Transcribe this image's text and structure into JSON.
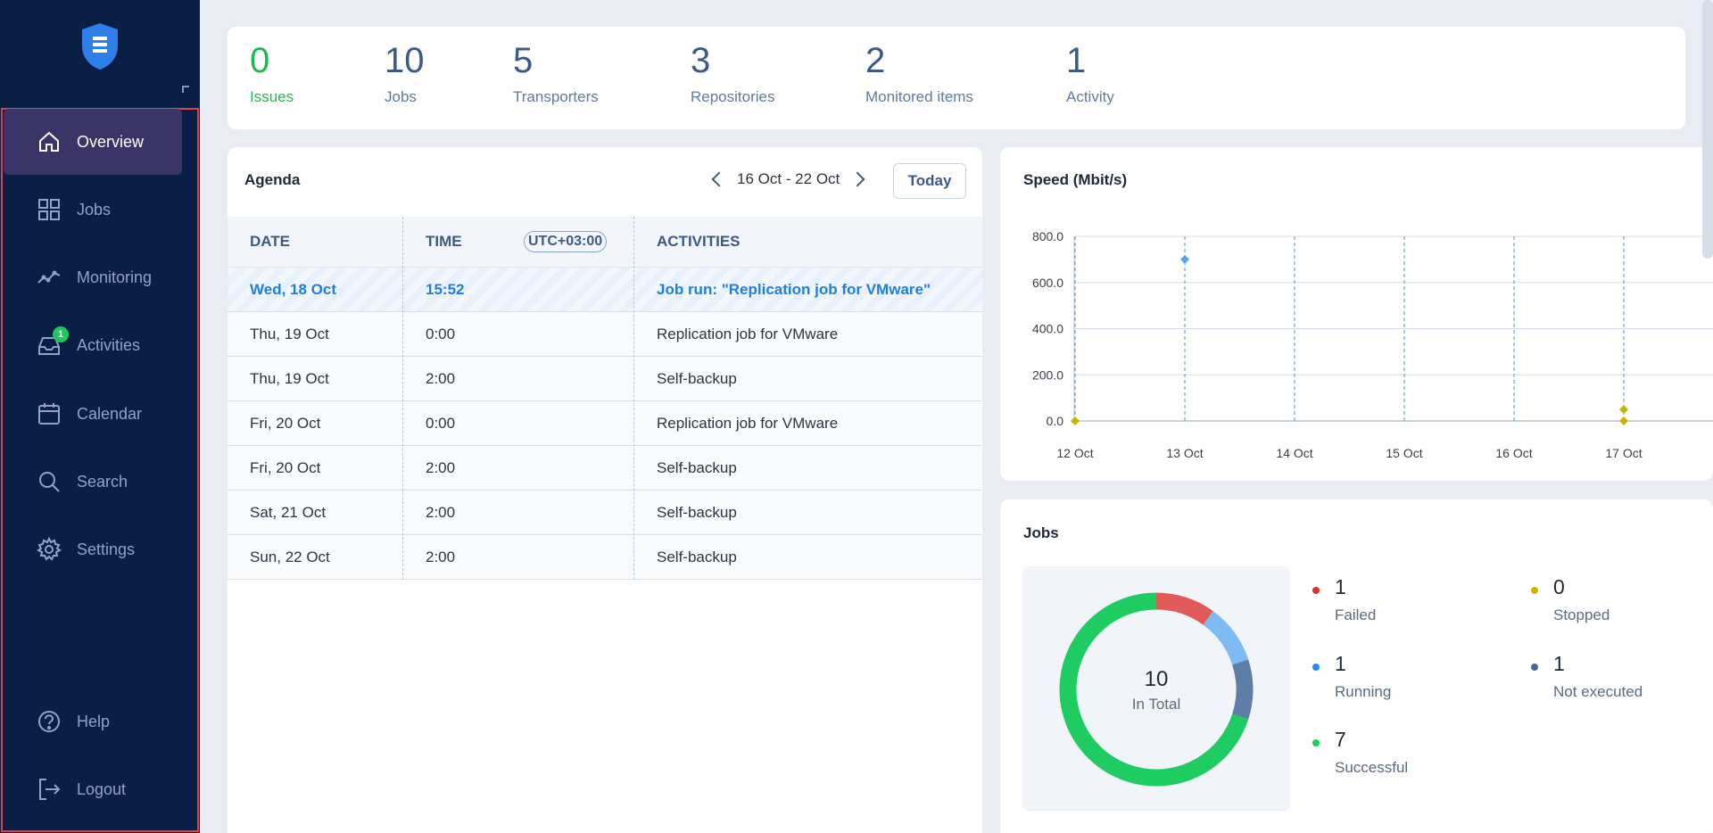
{
  "colors": {
    "sidebar_bg": "#0b1e44",
    "active_nav_bg": "#3b3466",
    "accent_green": "#22b853",
    "accent_blue": "#1e7fde",
    "failed": "#e05a5a",
    "running": "#7dbbf2",
    "not_executed": "#5f7ea6",
    "successful": "#1fcc62",
    "stopped": "#c8b400"
  },
  "sidebar": {
    "logo_icon": "shield-logo-icon",
    "items": [
      {
        "label": "Overview",
        "icon": "home-icon",
        "active": true
      },
      {
        "label": "Jobs",
        "icon": "grid-icon"
      },
      {
        "label": "Monitoring",
        "icon": "graph-icon"
      },
      {
        "label": "Activities",
        "icon": "inbox-icon",
        "badge": "1"
      },
      {
        "label": "Calendar",
        "icon": "calendar-icon"
      },
      {
        "label": "Search",
        "icon": "search-icon"
      },
      {
        "label": "Settings",
        "icon": "gear-icon"
      },
      {
        "label": "Help",
        "icon": "help-icon"
      },
      {
        "label": "Logout",
        "icon": "logout-icon"
      }
    ]
  },
  "stats": [
    {
      "value": "0",
      "label": "Issues"
    },
    {
      "value": "10",
      "label": "Jobs"
    },
    {
      "value": "5",
      "label": "Transporters"
    },
    {
      "value": "3",
      "label": "Repositories"
    },
    {
      "value": "2",
      "label": "Monitored items"
    },
    {
      "value": "1",
      "label": "Activity"
    }
  ],
  "agenda": {
    "title": "Agenda",
    "range": "16 Oct - 22 Oct",
    "today_label": "Today",
    "headers": {
      "date": "DATE",
      "time": "TIME",
      "timezone": "UTC+03:00",
      "activities": "ACTIVITIES"
    },
    "rows": [
      {
        "date": "Wed, 18 Oct",
        "time": "15:52",
        "activity": "Job run: \"Replication job for VMware\"",
        "highlight": true
      },
      {
        "date": "Thu, 19 Oct",
        "time": "0:00",
        "activity": "Replication job for VMware"
      },
      {
        "date": "Thu, 19 Oct",
        "time": "2:00",
        "activity": "Self-backup"
      },
      {
        "date": "Fri, 20 Oct",
        "time": "0:00",
        "activity": "Replication job for VMware"
      },
      {
        "date": "Fri, 20 Oct",
        "time": "2:00",
        "activity": "Self-backup"
      },
      {
        "date": "Sat, 21 Oct",
        "time": "2:00",
        "activity": "Self-backup"
      },
      {
        "date": "Sun, 22 Oct",
        "time": "2:00",
        "activity": "Self-backup"
      }
    ]
  },
  "speed": {
    "title": "Speed (Mbit/s)"
  },
  "jobs": {
    "title": "Jobs",
    "total": "10",
    "total_label": "In Total",
    "legend": [
      {
        "value": "1",
        "label": "Failed",
        "color": "#d9342b"
      },
      {
        "value": "0",
        "label": "Stopped",
        "color": "#c8b400"
      },
      {
        "value": "1",
        "label": "Running",
        "color": "#1e8ef0"
      },
      {
        "value": "1",
        "label": "Not executed",
        "color": "#4a6a96"
      },
      {
        "value": "7",
        "label": "Successful",
        "color": "#1fcc62"
      }
    ]
  },
  "chart_data": [
    {
      "type": "scatter",
      "title": "Speed (Mbit/s)",
      "x": [
        "12 Oct",
        "13 Oct",
        "14 Oct",
        "15 Oct",
        "16 Oct",
        "17 Oct"
      ],
      "yticks": [
        "800.0",
        "600.0",
        "400.0",
        "200.0",
        "0.0"
      ],
      "ylim": [
        0,
        800
      ],
      "series": [
        {
          "color": "#5aa3ef",
          "points": [
            {
              "x": "13 Oct",
              "y": 700
            }
          ]
        },
        {
          "color": "#c8b400",
          "points": [
            {
              "x": "12 Oct",
              "y": 0
            },
            {
              "x": "17 Oct",
              "y": 0
            },
            {
              "x": "17 Oct",
              "y": 50
            }
          ]
        }
      ]
    },
    {
      "type": "pie",
      "title": "Jobs",
      "categories": [
        "Failed",
        "Running",
        "Not executed",
        "Successful",
        "Stopped"
      ],
      "values": [
        1,
        1,
        1,
        7,
        0
      ],
      "colors": [
        "#e05a5a",
        "#7dbbf2",
        "#5f7ea6",
        "#1fcc62",
        "#c8b400"
      ]
    }
  ]
}
